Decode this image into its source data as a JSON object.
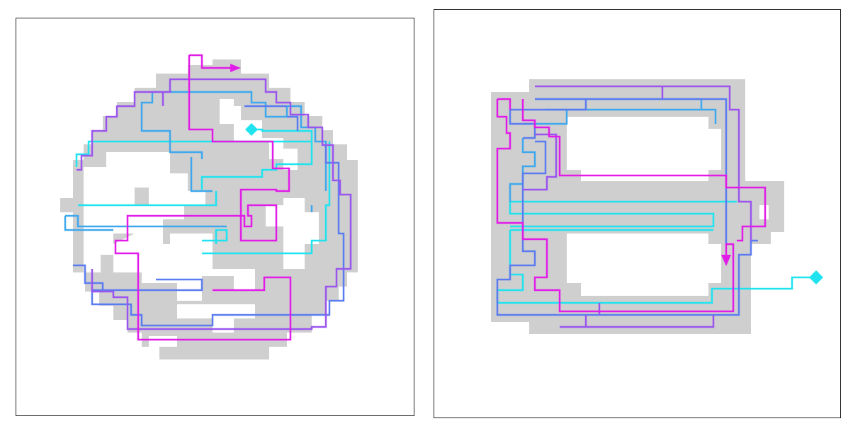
{
  "colors": {
    "background": "#ffffff",
    "frame": "#222222",
    "region_fill": "#cfcfcf",
    "path_cyan": "#1fe3ef",
    "path_sky": "#3ea8ee",
    "path_blue": "#5b7cf0",
    "path_violet": "#9a55ee",
    "path_magenta": "#e11ce8",
    "start_marker": "#1fe3ef",
    "end_arrow": "#e11ce8"
  },
  "panels": [
    {
      "id": "left",
      "shape": "circular maze-like region traversed by a space-filling path",
      "start_marker": "diamond-icon",
      "end_marker": "arrow-right-icon"
    },
    {
      "id": "right",
      "shape": "rectangular region with two rectangular holes traversed by a space-filling path",
      "start_marker": "diamond-icon",
      "end_marker": "arrow-down-icon"
    }
  ]
}
